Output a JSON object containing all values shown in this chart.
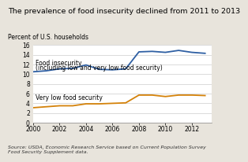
{
  "title": "The prevalence of food insecurity declined from 2011 to 2013",
  "ylabel": "Percent of U.S. households",
  "source": "Source: USDA, Economic Research Service based on Current Population Survey\nFood Security Supplement data.",
  "ylim": [
    0,
    16
  ],
  "yticks": [
    0,
    2,
    4,
    6,
    8,
    10,
    12,
    14,
    16
  ],
  "xticks": [
    2000,
    2002,
    2004,
    2006,
    2008,
    2010,
    2012
  ],
  "xlim": [
    2000,
    2013.5
  ],
  "food_insecurity": {
    "years": [
      2000,
      2001,
      2002,
      2003,
      2004,
      2005,
      2006,
      2007,
      2008,
      2009,
      2010,
      2011,
      2012,
      2013
    ],
    "values": [
      10.5,
      10.7,
      11.1,
      11.2,
      11.9,
      11.0,
      10.9,
      11.1,
      14.6,
      14.7,
      14.5,
      14.9,
      14.5,
      14.3
    ],
    "color": "#2e5fa3",
    "label1": "Food insecurity",
    "label2": "(including low and very low food security)"
  },
  "very_low": {
    "years": [
      2000,
      2001,
      2002,
      2003,
      2004,
      2005,
      2006,
      2007,
      2008,
      2009,
      2010,
      2011,
      2012,
      2013
    ],
    "values": [
      3.1,
      3.3,
      3.5,
      3.5,
      3.9,
      3.9,
      4.0,
      4.1,
      5.7,
      5.7,
      5.4,
      5.7,
      5.7,
      5.6
    ],
    "color": "#d4820a",
    "label": "Very low food security"
  },
  "title_fontsize": 6.8,
  "ylabel_fontsize": 5.5,
  "tick_fontsize": 5.5,
  "source_fontsize": 4.5,
  "annot_fontsize": 5.5,
  "line_width": 1.3,
  "fig_bg": "#e8e4dc",
  "plot_bg": "#ffffff"
}
